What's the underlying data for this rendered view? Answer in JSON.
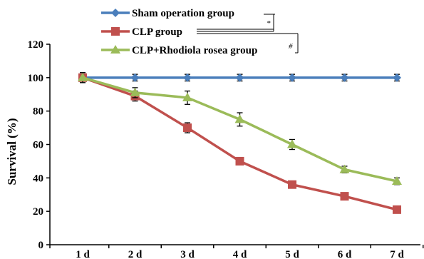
{
  "chart_data": {
    "type": "line",
    "title": "",
    "xlabel": "",
    "ylabel": "Survival (%)",
    "ylim": [
      0,
      120
    ],
    "yticks": [
      0,
      20,
      40,
      60,
      80,
      100,
      120
    ],
    "categories": [
      "1 d",
      "2 d",
      "3 d",
      "4 d",
      "5 d",
      "6 d",
      "7 d"
    ],
    "grid": false,
    "legend_position": "top",
    "series": [
      {
        "name": "Sham operation group",
        "color": "#4a7ebb",
        "marker": "diamond",
        "values": [
          100,
          100,
          100,
          100,
          100,
          100,
          100
        ],
        "errors": [
          2,
          2,
          2,
          2,
          2,
          2,
          2
        ]
      },
      {
        "name": "CLP group",
        "color": "#c0504d",
        "marker": "square",
        "values": [
          100,
          89,
          70,
          50,
          36,
          29,
          21
        ],
        "errors": [
          3,
          3,
          3,
          2,
          2,
          1.5,
          1.5
        ]
      },
      {
        "name": "CLP+Rhodiola rosea group",
        "color": "#9bbb59",
        "marker": "triangle",
        "values": [
          100,
          91,
          88,
          75,
          60,
          45,
          38
        ],
        "errors": [
          3,
          3,
          4,
          4,
          3,
          2,
          2
        ]
      }
    ],
    "annotations": [
      {
        "text": "*",
        "between": [
          "Sham operation group",
          "CLP group"
        ]
      },
      {
        "text": "#",
        "between": [
          "CLP group",
          "CLP+Rhodiola rosea group"
        ]
      }
    ]
  }
}
